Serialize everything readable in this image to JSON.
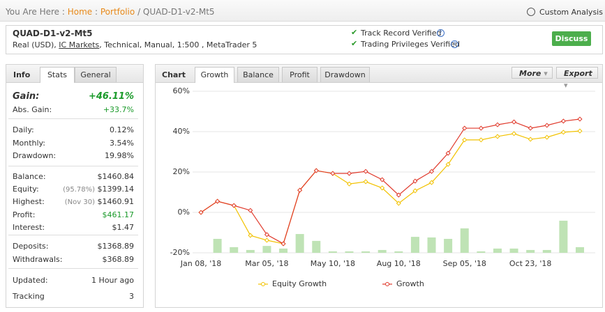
{
  "breadcrumb": {
    "label": "You Are Here :",
    "home": "Home",
    "separator": ":",
    "portfolio": "Portfolio",
    "current": "/ QUAD-D1-v2-Mt5"
  },
  "custom_analysis": "Custom Analysis",
  "system": {
    "name": "QUAD-D1-v2-Mt5",
    "details_prefix": "Real (USD),",
    "broker": "IC Markets",
    "details_suffix": ", Technical, Manual, 1:500 , MetaTrader 5"
  },
  "verified": [
    "Track Record Verified",
    "Trading Privileges Verified"
  ],
  "discuss": "Discuss",
  "stats_tabs": [
    "Info",
    "Stats",
    "General"
  ],
  "stats": [
    [
      {
        "label": "Gain:",
        "value": "+46.11%",
        "color": "#1a9a2a",
        "emphasis": true
      },
      {
        "label": "Abs. Gain:",
        "value": "+33.7%",
        "color": "#1a9a2a"
      }
    ],
    [
      {
        "label": "Daily:",
        "value": "0.12%"
      },
      {
        "label": "Monthly:",
        "value": "3.54%"
      },
      {
        "label": "Drawdown:",
        "value": "19.98%"
      }
    ],
    [
      {
        "label": "Balance:",
        "value": "$1460.84"
      },
      {
        "label": "Equity:",
        "note": "(95.78%)",
        "value": "$1399.14"
      },
      {
        "label": "Highest:",
        "note": "(Nov 30)",
        "value": "$1460.91"
      },
      {
        "label": "Profit:",
        "value": "$461.17",
        "color": "#1a9a2a"
      },
      {
        "label": "Interest:",
        "value": "$1.47"
      }
    ],
    [
      {
        "label": "Deposits:",
        "value": "$1368.89"
      },
      {
        "label": "Withdrawals:",
        "value": "$368.89"
      }
    ],
    [
      {
        "label": "Updated:",
        "value": "1 Hour ago"
      },
      {
        "label": "Tracking",
        "value": "3"
      }
    ]
  ],
  "chart_panel": {
    "title": "Chart",
    "tabs": [
      "Growth",
      "Balance",
      "Profit",
      "Drawdown"
    ],
    "buttons": [
      "More",
      "Export"
    ]
  },
  "chart_data": {
    "type": "line",
    "categories": [
      "Jan 08, '18",
      null,
      null,
      null,
      "Mar 05, '18",
      null,
      null,
      null,
      "May 10, '18",
      null,
      null,
      null,
      "Aug 10, '18",
      null,
      null,
      null,
      "Sep 05, '18",
      null,
      null,
      null,
      "Oct 23, '18",
      null,
      null,
      null
    ],
    "series": [
      {
        "name": "Equity Growth",
        "color": "#f2c200",
        "values": [
          0,
          5.5,
          3.4,
          -11.4,
          -13.8,
          -15.5,
          11,
          20.7,
          19.3,
          14.1,
          15.2,
          12.1,
          4.5,
          10.7,
          14.8,
          23.8,
          35.9,
          35.9,
          37.6,
          39,
          36.2,
          37.2,
          39.7,
          40.3
        ]
      },
      {
        "name": "Growth",
        "color": "#e0392b",
        "values": [
          0,
          5.5,
          3.4,
          1,
          -11,
          -15.5,
          11,
          20.7,
          19.3,
          19.3,
          20.3,
          16.2,
          8.6,
          15.5,
          20.3,
          29.3,
          41.7,
          41.7,
          43.4,
          44.8,
          41.7,
          43.1,
          45.2,
          46.2
        ]
      },
      {
        "type": "bar",
        "color": "#bfe3b5",
        "values": [
          null,
          -13.1,
          -17.2,
          -18.6,
          -16.6,
          -17.9,
          -10.7,
          -14.1,
          -19.3,
          -19.3,
          -19.3,
          -18.6,
          -19.3,
          -12.1,
          -12.4,
          -13.1,
          -7.9,
          -19.3,
          -17.9,
          -17.9,
          -18.6,
          -18.6,
          -4.1,
          -17.2
        ]
      }
    ],
    "ylim": [
      -20,
      60
    ],
    "yticks": [
      {
        "value": -20,
        "label": "-20%"
      },
      {
        "value": 0,
        "label": "0%"
      },
      {
        "value": 20,
        "label": "20%"
      },
      {
        "value": 40,
        "label": "40%"
      },
      {
        "value": 60,
        "label": "60%"
      }
    ],
    "grid": true
  }
}
